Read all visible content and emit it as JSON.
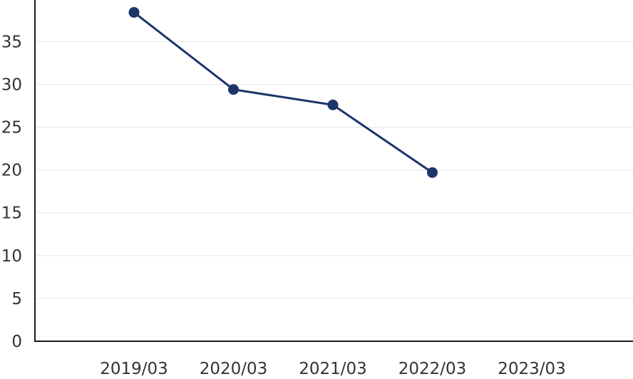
{
  "chart_data": {
    "type": "line",
    "title": "",
    "xlabel": "",
    "ylabel": "",
    "categories": [
      "2019/03",
      "2020/03",
      "2021/03",
      "2022/03",
      "2023/03"
    ],
    "series": [
      {
        "values": [
          38.4,
          29.4,
          27.6,
          19.7,
          null
        ],
        "color": "#1b3569"
      }
    ],
    "ylim": [
      0,
      40
    ],
    "yticks": [
      0,
      5,
      10,
      15,
      20,
      25,
      30,
      35
    ],
    "grid": true,
    "legend": "none"
  }
}
